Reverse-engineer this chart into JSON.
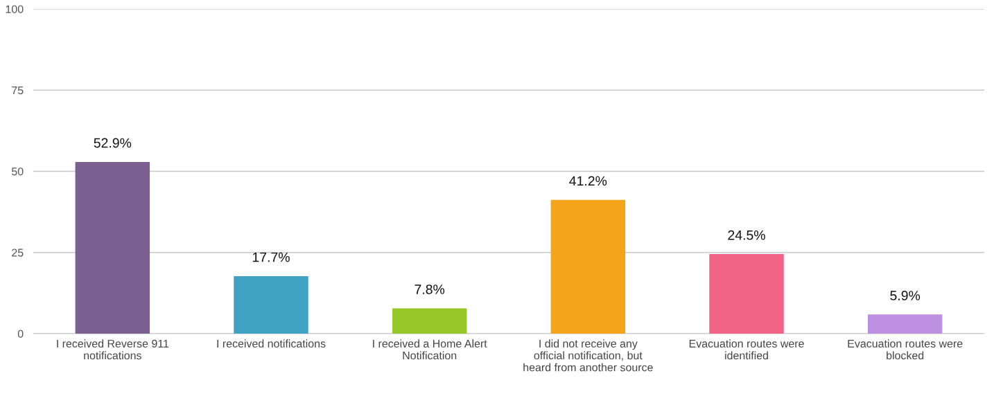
{
  "chart_data": {
    "type": "bar",
    "categories": [
      "I received Reverse 911 notifications",
      "I received notifications",
      "I received a Home Alert Notification",
      "I did not receive any official notification, but heard from another source",
      "Evacuation routes were identified",
      "Evacuation routes were blocked"
    ],
    "values": [
      52.9,
      17.7,
      7.8,
      41.2,
      24.5,
      5.9
    ],
    "value_labels": [
      "52.9%",
      "17.7%",
      "7.8%",
      "41.2%",
      "24.5%",
      "5.9%"
    ],
    "colors": [
      "#7b5f91",
      "#40a2c1",
      "#95c726",
      "#f4a41b",
      "#f06384",
      "#bd8fe0"
    ],
    "ylim": [
      0,
      100
    ],
    "yticks": [
      0,
      25,
      50,
      75,
      100
    ],
    "grid": "y",
    "legend": false
  }
}
